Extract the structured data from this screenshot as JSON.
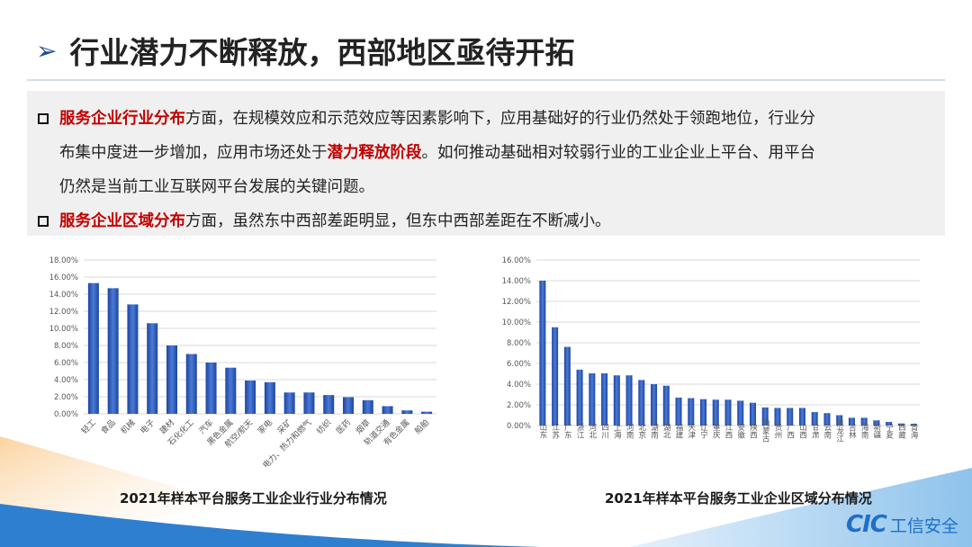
{
  "title": "行业潜力不断释放，西部地区亟待开拓",
  "paragraphs": [
    {
      "highlight": "服务企业行业分布",
      "line1": "方面，在规模效应和示范效应等因素影响下，应用基础好的行业仍然处于领跑地位，行业分",
      "line2a": "布集中度进一步增加，应用市场还处于",
      "highlight2": "潜力释放阶段",
      "line2b": "。如何推动基础相对较弱行业的工业企业上平台、用平台",
      "line3": "仍然是当前工业互联网平台发展的关键问题。"
    },
    {
      "highlight": "服务企业区域分布",
      "rest": "方面，虽然东中西部差距明显，但东中西部差距在不断减小。"
    }
  ],
  "colors": {
    "bar": "#2e5bb8",
    "highlight": "#c00000",
    "title_arrow": "#1f4e9c",
    "logo": "#1f6fc6"
  },
  "logo": {
    "mark": "CIC",
    "text": "工信安全"
  },
  "chart_data": [
    {
      "type": "bar",
      "title": "2021年样本平台服务工业企业行业分布情况",
      "ylim": [
        0,
        18
      ],
      "yticks": [
        "0.00%",
        "2.00%",
        "4.00%",
        "6.00%",
        "8.00%",
        "10.00%",
        "12.00%",
        "14.00%",
        "16.00%",
        "18.00%"
      ],
      "grid": true,
      "categories": [
        "轻工",
        "食品",
        "机械",
        "电子",
        "建材",
        "石化化工",
        "汽车",
        "黑色金属",
        "航空/航天",
        "家电",
        "采矿",
        "电力、热力和燃气",
        "纺织",
        "医药",
        "烟草",
        "轨道交通",
        "有色金属",
        "船舶"
      ],
      "values": [
        15.3,
        14.7,
        12.8,
        10.6,
        8.0,
        7.0,
        6.0,
        5.4,
        3.9,
        3.7,
        2.5,
        2.5,
        2.2,
        1.95,
        1.6,
        0.9,
        0.4,
        0.25
      ]
    },
    {
      "type": "bar",
      "title": "2021年样本平台服务工业企业区域分布情况",
      "ylim": [
        0,
        16
      ],
      "yticks": [
        "0.00%",
        "2.00%",
        "4.00%",
        "6.00%",
        "8.00%",
        "10.00%",
        "12.00%",
        "14.00%",
        "16.00%"
      ],
      "grid": true,
      "categories": [
        "山东",
        "江苏",
        "广东",
        "浙江",
        "河北",
        "四川",
        "上海",
        "河南",
        "北京",
        "湖南",
        "湖北",
        "福建",
        "天津",
        "辽宁",
        "重庆",
        "江西",
        "安徽",
        "陕西",
        "内蒙古",
        "贵州",
        "广西",
        "山西",
        "甘肃",
        "云南",
        "黑龙江",
        "吉林",
        "海南",
        "新疆",
        "宁夏",
        "西藏",
        "青海"
      ],
      "values": [
        14.0,
        9.5,
        7.6,
        5.4,
        5.05,
        5.05,
        4.85,
        4.85,
        4.4,
        4.0,
        3.85,
        2.7,
        2.65,
        2.55,
        2.5,
        2.5,
        2.4,
        2.2,
        1.75,
        1.7,
        1.7,
        1.7,
        1.3,
        1.2,
        1.0,
        0.75,
        0.75,
        0.5,
        0.35,
        0.2,
        0.15
      ]
    }
  ]
}
